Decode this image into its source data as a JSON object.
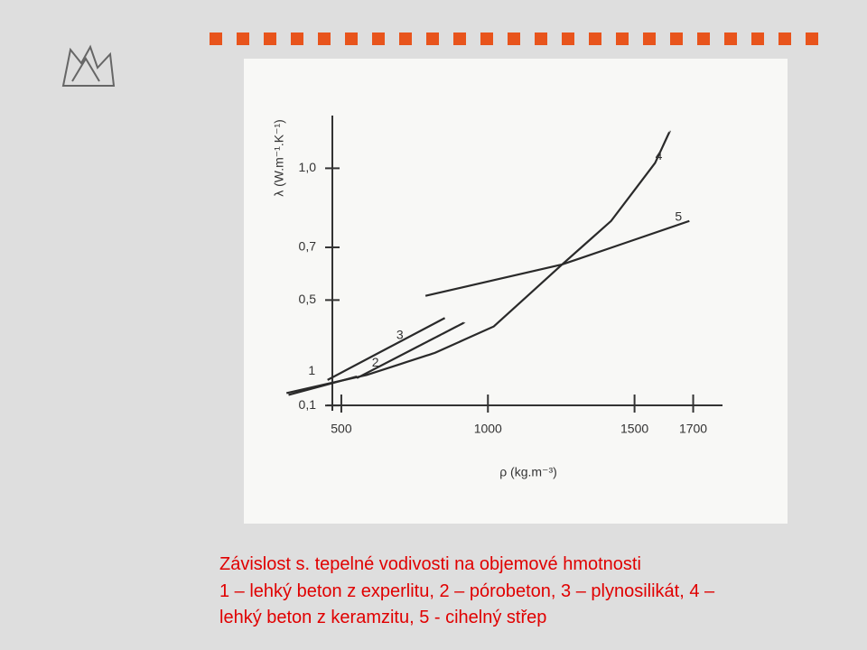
{
  "chart_data": {
    "type": "line",
    "y_label": "λ (W.m⁻¹.K⁻¹)",
    "x_label": "ρ (kg.m⁻³)",
    "xlim": [
      300,
      1800
    ],
    "ylim": [
      0.08,
      1.2
    ],
    "xticks": [
      500,
      1000,
      1500,
      1700
    ],
    "yticks": [
      {
        "value": 0.1,
        "label": "0,1"
      },
      {
        "value": 0.5,
        "label": "0,5"
      },
      {
        "value": 0.7,
        "label": "0,7"
      },
      {
        "value": 1.0,
        "label": "1,0"
      }
    ],
    "series": [
      {
        "name": "1",
        "color": "#2a2a2a",
        "x": [
          320,
          553
        ],
        "values": [
          0.14,
          0.21
        ]
      },
      {
        "name": "2",
        "color": "#2a2a2a",
        "x": [
          453,
          853
        ],
        "values": [
          0.197,
          0.432
        ]
      },
      {
        "name": "3",
        "color": "#2a2a2a",
        "x": [
          553,
          920
        ],
        "values": [
          0.204,
          0.415
        ]
      },
      {
        "name": "4",
        "color": "#2a2a2a",
        "x": [
          313,
          587,
          820,
          1020,
          1253,
          1420,
          1570,
          1620
        ],
        "values": [
          0.147,
          0.216,
          0.3,
          0.4,
          0.635,
          0.8,
          1.02,
          1.14
        ]
      },
      {
        "name": "5",
        "color": "#2a2a2a",
        "x": [
          787,
          1253,
          1687
        ],
        "values": [
          0.516,
          0.635,
          0.8
        ]
      }
    ]
  },
  "caption": [
    "Závislost s. tepelné vodivosti na objemové hmotnosti",
    "1 – lehký beton z experlitu, 2 – pórobeton, 3 – plynosilikát, 4 –",
    "lehký beton z keramzitu, 5 - cihelný střep"
  ]
}
